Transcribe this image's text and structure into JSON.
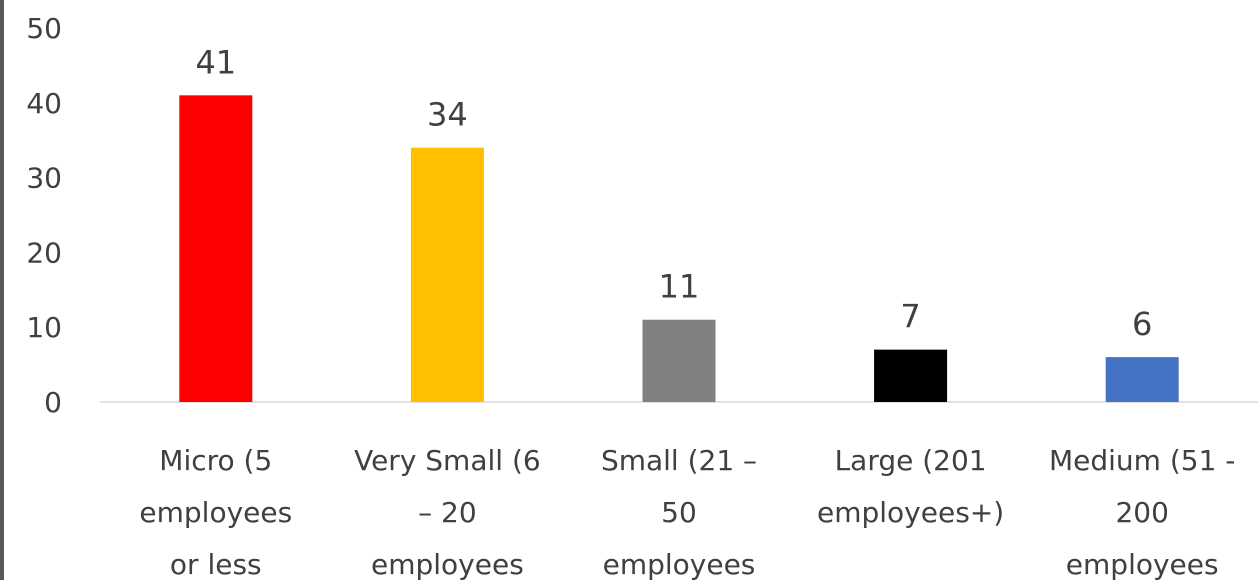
{
  "chart_data": {
    "type": "bar",
    "categories": [
      [
        "Micro (5",
        "employees",
        "or less"
      ],
      [
        "Very Small (6",
        "– 20",
        "employees"
      ],
      [
        "Small (21 –",
        "50",
        "employees"
      ],
      [
        "Large (201",
        "employees+)"
      ],
      [
        "Medium (51 -",
        "200",
        "employees"
      ]
    ],
    "values": [
      41,
      34,
      11,
      7,
      6
    ],
    "colors": [
      "#ff0000",
      "#ffc000",
      "#808080",
      "#000000",
      "#4472c4"
    ],
    "ylim": [
      0,
      50
    ],
    "yticks": [
      0,
      10,
      20,
      30,
      40,
      50
    ],
    "title": "",
    "xlabel": "",
    "ylabel": "",
    "grid": false,
    "data_labels": true
  }
}
